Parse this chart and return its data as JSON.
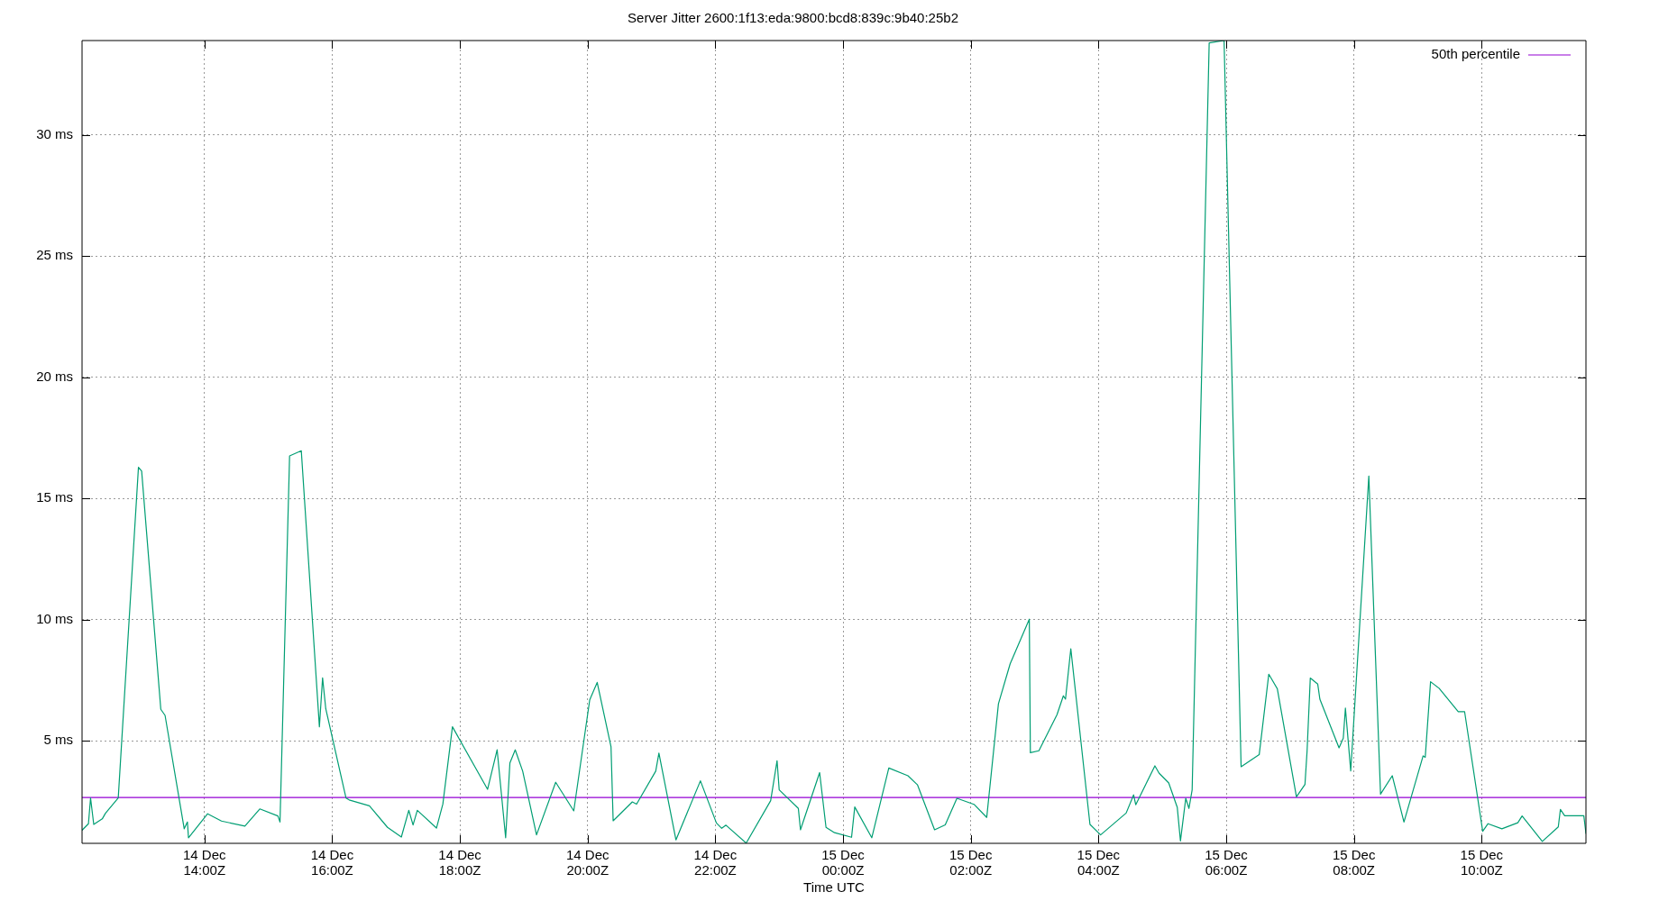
{
  "chart_data": {
    "type": "line",
    "title": "Server Jitter 2600:1f13:eda:9800:bcd8:839c:9b40:25b2",
    "xlabel": "Time UTC",
    "x": [
      "--12-14T12:05",
      "--12-14T12:11",
      "--12-14T12:13",
      "--12-14T12:16",
      "--12-14T12:24",
      "--12-14T12:27",
      "--12-14T12:39",
      "--12-14T12:58",
      "--12-14T13:01",
      "--12-14T13:19",
      "--12-14T13:23",
      "--12-14T13:41",
      "--12-14T13:44",
      "--12-14T13:45",
      "--12-14T14:03",
      "--12-14T14:16",
      "--12-14T14:38",
      "--12-14T14:52",
      "--12-14T15:09",
      "--12-14T15:11",
      "--12-14T15:20",
      "--12-14T15:31",
      "--12-14T15:48",
      "--12-14T15:51",
      "--12-14T15:54",
      "--12-14T16:13",
      "--12-14T16:16",
      "--12-14T16:35",
      "--12-14T16:52",
      "--12-14T17:05",
      "--12-14T17:12",
      "--12-14T17:16",
      "--12-14T17:20",
      "--12-14T17:38",
      "--12-14T17:44",
      "--12-14T17:53",
      "--12-14T18:26",
      "--12-14T18:35",
      "--12-14T18:43",
      "--12-14T18:47",
      "--12-14T18:52",
      "--12-14T18:59",
      "--12-14T19:12",
      "--12-14T19:30",
      "--12-14T19:47",
      "--12-14T20:02",
      "--12-14T20:09",
      "--12-14T20:22",
      "--12-14T20:24",
      "--12-14T20:42",
      "--12-14T20:46",
      "--12-14T21:04",
      "--12-14T21:07",
      "--12-14T21:23",
      "--12-14T21:46",
      "--12-14T22:01",
      "--12-14T22:06",
      "--12-14T22:10",
      "--12-14T22:29",
      "--12-14T22:52",
      "--12-14T22:58",
      "--12-14T23:00",
      "--12-14T23:18",
      "--12-14T23:20",
      "--12-14T23:38",
      "--12-14T23:44",
      "--12-14T23:52",
      "--12-15T00:08",
      "--12-15T00:11",
      "--12-15T00:27",
      "--12-15T00:43",
      "--12-15T01:01",
      "--12-15T01:10",
      "--12-15T01:26",
      "--12-15T01:36",
      "--12-15T01:47",
      "--12-15T02:03",
      "--12-15T02:15",
      "--12-15T02:26",
      "--12-15T02:37",
      "--12-15T02:55",
      "--12-15T02:56",
      "--12-15T03:04",
      "--12-15T03:21",
      "--12-15T03:27",
      "--12-15T03:29",
      "--12-15T03:34",
      "--12-15T03:52",
      "--12-15T04:02",
      "--12-15T04:26",
      "--12-15T04:33",
      "--12-15T04:35",
      "--12-15T04:53",
      "--12-15T04:57",
      "--12-15T05:06",
      "--12-15T05:14",
      "--12-15T05:17",
      "--12-15T05:22",
      "--12-15T05:25",
      "--12-15T05:28",
      "--12-15T05:44",
      "--12-15T05:58",
      "--12-15T06:14",
      "--12-15T06:31",
      "--12-15T06:40",
      "--12-15T06:48",
      "--12-15T07:06",
      "--12-15T07:14",
      "--12-15T07:16",
      "--12-15T07:19",
      "--12-15T07:26",
      "--12-15T07:28",
      "--12-15T07:46",
      "--12-15T07:50",
      "--12-15T07:52",
      "--12-15T07:57",
      "--12-15T08:14",
      "--12-15T08:25",
      "--12-15T08:36",
      "--12-15T08:47",
      "--12-15T09:05",
      "--12-15T09:07",
      "--12-15T09:12",
      "--12-15T09:20",
      "--12-15T09:38",
      "--12-15T09:44",
      "--12-15T10:01",
      "--12-15T10:06",
      "--12-15T10:19",
      "--12-15T10:34",
      "--12-15T10:38",
      "--12-15T10:57",
      "--12-15T11:12",
      "--12-15T11:14",
      "--12-15T11:18",
      "--12-15T11:36",
      "--12-15T11:38"
    ],
    "values": [
      1.31,
      1.58,
      2.64,
      1.55,
      1.78,
      2.01,
      2.64,
      16.29,
      16.13,
      6.3,
      6.05,
      1.37,
      1.65,
      1.0,
      1.99,
      1.69,
      1.48,
      2.19,
      1.9,
      1.65,
      16.76,
      16.97,
      5.58,
      7.6,
      6.32,
      2.64,
      2.56,
      2.32,
      1.43,
      1.03,
      2.13,
      1.53,
      2.13,
      1.4,
      2.39,
      5.58,
      3.0,
      4.63,
      1.0,
      4.09,
      4.63,
      3.75,
      1.12,
      3.29,
      2.11,
      6.69,
      7.41,
      4.75,
      1.7,
      2.48,
      2.39,
      3.75,
      4.49,
      0.91,
      3.35,
      1.61,
      1.39,
      1.52,
      0.78,
      2.53,
      4.18,
      2.98,
      2.21,
      1.33,
      3.69,
      1.43,
      1.21,
      1.02,
      2.27,
      1.0,
      3.88,
      3.56,
      3.18,
      1.33,
      1.53,
      2.63,
      2.38,
      1.84,
      6.53,
      8.18,
      10.02,
      4.51,
      4.59,
      6.08,
      6.86,
      6.72,
      8.8,
      1.55,
      1.12,
      2.02,
      2.77,
      2.36,
      3.97,
      3.66,
      3.26,
      2.26,
      0.87,
      2.63,
      2.21,
      2.98,
      33.8,
      33.9,
      3.93,
      4.43,
      7.75,
      7.15,
      2.69,
      3.2,
      4.59,
      7.59,
      7.34,
      6.72,
      4.71,
      5.11,
      6.35,
      3.76,
      15.93,
      2.8,
      3.56,
      1.65,
      4.38,
      4.32,
      7.44,
      7.17,
      6.2,
      6.2,
      1.27,
      1.58,
      1.37,
      1.62,
      1.9,
      0.85,
      1.45,
      2.17,
      1.91,
      1.91,
      1.18
    ],
    "color": "#009e73",
    "xlim": [
      "--12-14T12:05",
      "--12-15T11:38"
    ],
    "xticks": [
      {
        "value": "--12-14T14:00",
        "label": "14 Dec\n14:00Z"
      },
      {
        "value": "--12-14T16:00",
        "label": "14 Dec\n16:00Z"
      },
      {
        "value": "--12-14T18:00",
        "label": "14 Dec\n18:00Z"
      },
      {
        "value": "--12-14T20:00",
        "label": "14 Dec\n20:00Z"
      },
      {
        "value": "--12-14T22:00",
        "label": "14 Dec\n22:00Z"
      },
      {
        "value": "--12-15T00:00",
        "label": "15 Dec\n00:00Z"
      },
      {
        "value": "--12-15T02:00",
        "label": "15 Dec\n02:00Z"
      },
      {
        "value": "--12-15T04:00",
        "label": "15 Dec\n04:00Z"
      },
      {
        "value": "--12-15T06:00",
        "label": "15 Dec\n06:00Z"
      },
      {
        "value": "--12-15T08:00",
        "label": "15 Dec\n08:00Z"
      },
      {
        "value": "--12-15T10:00",
        "label": "15 Dec\n10:00Z"
      }
    ],
    "ylim": [
      0.77,
      33.9
    ],
    "yticks": [
      {
        "value": 5,
        "label": "5 ms"
      },
      {
        "value": 10,
        "label": "10 ms"
      },
      {
        "value": 15,
        "label": "15 ms"
      },
      {
        "value": 20,
        "label": "20 ms"
      },
      {
        "value": 25,
        "label": "25 ms"
      },
      {
        "value": 30,
        "label": "30 ms"
      }
    ],
    "ref_lines": [
      {
        "axis": "y",
        "value": 2.66,
        "label": "50th percentile",
        "color": "#9400d3"
      }
    ],
    "grid": true,
    "legend": "top right"
  }
}
